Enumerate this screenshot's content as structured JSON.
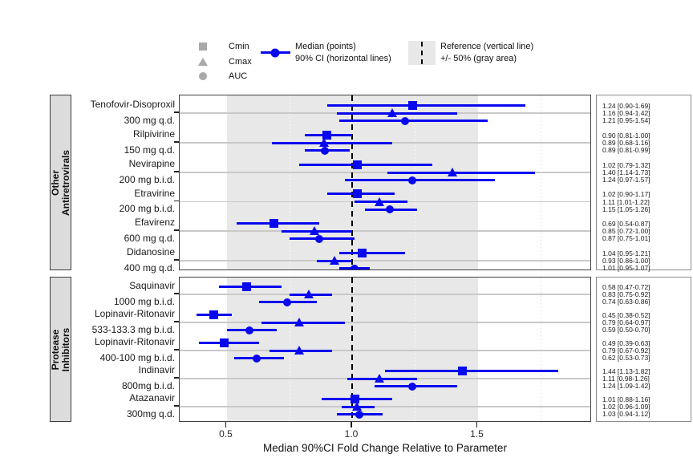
{
  "colors": {
    "marker_blue": "#0808EE",
    "legend_gray": "#A9A9A9",
    "band_gray": "#E8E8E8",
    "strip_bg": "#DCDCDC",
    "gridline": "#C9C9C9",
    "panel_border": "#404040",
    "valuebox_border": "#8C8C8C"
  },
  "legend": {
    "shape_items": [
      {
        "label": "Cmin",
        "shape": "square"
      },
      {
        "label": "Cmax",
        "shape": "triangle"
      },
      {
        "label": "AUC",
        "shape": "circle"
      }
    ],
    "median_item": {
      "line1": "Median (points)",
      "line2": "90% CI (horizontal lines)"
    },
    "reference_item": {
      "line1": "Reference (vertical line)",
      "line2": "+/- 50% (gray area)"
    }
  },
  "chart_data": {
    "type": "forest",
    "xlabel": "Median 90%CI Fold Change Relative to Parameter",
    "x_ticks": [
      "0.5",
      "1.0",
      "1.5"
    ],
    "x_tick_values": [
      0.5,
      1.0,
      1.5
    ],
    "x_range": [
      0.31,
      1.96
    ],
    "reference": 1.0,
    "band": [
      0.5,
      1.5
    ],
    "minor_gridlines": [
      0.75,
      1.25,
      1.75
    ],
    "params": [
      "Cmin",
      "Cmax",
      "AUC"
    ],
    "panels": [
      {
        "strip_lines": [
          "Other",
          "Antiretrovirals"
        ],
        "drugs": [
          {
            "name": "Tenofovir-Disoproxil",
            "dose": "300 mg q.d.",
            "rows": [
              {
                "param": "Cmin",
                "median": 1.24,
                "lo": 0.9,
                "hi": 1.69,
                "label": "1.24 [0.90-1.69]"
              },
              {
                "param": "Cmax",
                "median": 1.16,
                "lo": 0.94,
                "hi": 1.42,
                "label": "1.16 [0.94-1.42]"
              },
              {
                "param": "AUC",
                "median": 1.21,
                "lo": 0.95,
                "hi": 1.54,
                "label": "1.21 [0.95-1.54]"
              }
            ]
          },
          {
            "name": "Rilpivirine",
            "dose": "150 mg q.d.",
            "rows": [
              {
                "param": "Cmin",
                "median": 0.9,
                "lo": 0.81,
                "hi": 1.0,
                "label": "0.90 [0.81-1.00]"
              },
              {
                "param": "Cmax",
                "median": 0.89,
                "lo": 0.68,
                "hi": 1.16,
                "label": "0.89 [0.68-1.16]"
              },
              {
                "param": "AUC",
                "median": 0.89,
                "lo": 0.81,
                "hi": 0.99,
                "label": "0.89 [0.81-0.99]"
              }
            ]
          },
          {
            "name": "Nevirapine",
            "dose": "200 mg b.i.d.",
            "rows": [
              {
                "param": "Cmin",
                "median": 1.02,
                "lo": 0.79,
                "hi": 1.32,
                "label": "1.02 [0.79-1.32]"
              },
              {
                "param": "Cmax",
                "median": 1.4,
                "lo": 1.14,
                "hi": 1.73,
                "label": "1.40 [1.14-1.73]"
              },
              {
                "param": "AUC",
                "median": 1.24,
                "lo": 0.97,
                "hi": 1.57,
                "label": "1.24 [0.97-1.57]"
              }
            ]
          },
          {
            "name": "Etravirine",
            "dose": "200 mg b.i.d.",
            "rows": [
              {
                "param": "Cmin",
                "median": 1.02,
                "lo": 0.9,
                "hi": 1.17,
                "label": "1.02 [0.90-1.17]"
              },
              {
                "param": "Cmax",
                "median": 1.11,
                "lo": 1.01,
                "hi": 1.22,
                "label": "1.11 [1.01-1.22]"
              },
              {
                "param": "AUC",
                "median": 1.15,
                "lo": 1.05,
                "hi": 1.26,
                "label": "1.15 [1.05-1.26]"
              }
            ]
          },
          {
            "name": "Efavirenz",
            "dose": "600 mg q.d.",
            "rows": [
              {
                "param": "Cmin",
                "median": 0.69,
                "lo": 0.54,
                "hi": 0.87,
                "label": "0.69 [0.54-0.87]"
              },
              {
                "param": "Cmax",
                "median": 0.85,
                "lo": 0.72,
                "hi": 1.0,
                "label": "0.85 [0.72-1.00]"
              },
              {
                "param": "AUC",
                "median": 0.87,
                "lo": 0.75,
                "hi": 1.01,
                "label": "0.87 [0.75-1.01]"
              }
            ]
          },
          {
            "name": "Didanosine",
            "dose": "400 mg q.d.",
            "rows": [
              {
                "param": "Cmin",
                "median": 1.04,
                "lo": 0.95,
                "hi": 1.21,
                "label": "1.04 [0.95-1.21]"
              },
              {
                "param": "Cmax",
                "median": 0.93,
                "lo": 0.86,
                "hi": 1.0,
                "label": "0.93 [0.86-1.00]"
              },
              {
                "param": "AUC",
                "median": 1.01,
                "lo": 0.95,
                "hi": 1.07,
                "label": "1.01 [0.95-1.07]"
              }
            ]
          }
        ]
      },
      {
        "strip_lines": [
          "Protease",
          "Inhibitors"
        ],
        "drugs": [
          {
            "name": "Saquinavir",
            "dose": "1000 mg b.i.d.",
            "rows": [
              {
                "param": "Cmin",
                "median": 0.58,
                "lo": 0.47,
                "hi": 0.72,
                "label": "0.58 [0.47-0.72]"
              },
              {
                "param": "Cmax",
                "median": 0.83,
                "lo": 0.75,
                "hi": 0.92,
                "label": "0.83 [0.75-0.92]"
              },
              {
                "param": "AUC",
                "median": 0.74,
                "lo": 0.63,
                "hi": 0.86,
                "label": "0.74 [0.63-0.86]"
              }
            ]
          },
          {
            "name": "Lopinavir-Ritonavir",
            "dose": "533-133.3 mg b.i.d.",
            "rows": [
              {
                "param": "Cmin",
                "median": 0.45,
                "lo": 0.38,
                "hi": 0.52,
                "label": "0.45 [0.38-0.52]"
              },
              {
                "param": "Cmax",
                "median": 0.79,
                "lo": 0.64,
                "hi": 0.97,
                "label": "0.79 [0.64-0.97]"
              },
              {
                "param": "AUC",
                "median": 0.59,
                "lo": 0.5,
                "hi": 0.7,
                "label": "0.59 [0.50-0.70]"
              }
            ]
          },
          {
            "name": "Lopinavir-Ritonavir",
            "dose": "400-100 mg b.i.d.",
            "rows": [
              {
                "param": "Cmin",
                "median": 0.49,
                "lo": 0.39,
                "hi": 0.63,
                "label": "0.49 [0.39-0.63]"
              },
              {
                "param": "Cmax",
                "median": 0.79,
                "lo": 0.67,
                "hi": 0.92,
                "label": "0.79 [0.67-0.92]"
              },
              {
                "param": "AUC",
                "median": 0.62,
                "lo": 0.53,
                "hi": 0.73,
                "label": "0.62 [0.53-0.73]"
              }
            ]
          },
          {
            "name": "Indinavir",
            "dose": "800mg b.i.d.",
            "rows": [
              {
                "param": "Cmin",
                "median": 1.44,
                "lo": 1.13,
                "hi": 1.82,
                "label": "1.44 [1.13-1.82]"
              },
              {
                "param": "Cmax",
                "median": 1.11,
                "lo": 0.98,
                "hi": 1.26,
                "label": "1.11 [0.98-1.26]"
              },
              {
                "param": "AUC",
                "median": 1.24,
                "lo": 1.09,
                "hi": 1.42,
                "label": "1.24 [1.09-1.42]"
              }
            ]
          },
          {
            "name": "Atazanavir",
            "dose": "300mg q.d.",
            "rows": [
              {
                "param": "Cmin",
                "median": 1.01,
                "lo": 0.88,
                "hi": 1.16,
                "label": "1.01 [0.88-1.16]"
              },
              {
                "param": "Cmax",
                "median": 1.02,
                "lo": 0.96,
                "hi": 1.09,
                "label": "1.02 [0.96-1.09]"
              },
              {
                "param": "AUC",
                "median": 1.03,
                "lo": 0.94,
                "hi": 1.12,
                "label": "1.03 [0.94-1.12]"
              }
            ]
          }
        ]
      }
    ]
  }
}
